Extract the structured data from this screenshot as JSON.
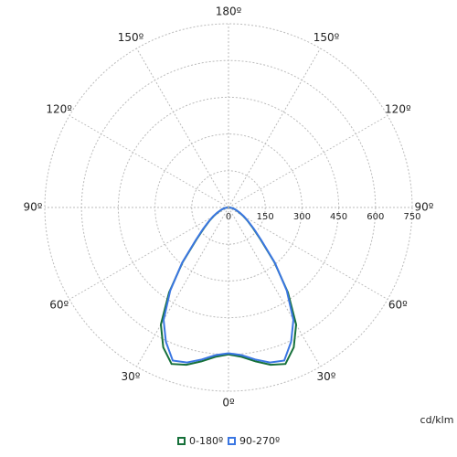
{
  "chart_data": {
    "type": "polar",
    "theta": [
      -90,
      -85,
      -80,
      -75,
      -70,
      -65,
      -60,
      -55,
      -50,
      -45,
      -40,
      -35,
      -30,
      -25,
      -20,
      -15,
      -10,
      -5,
      0,
      5,
      10,
      15,
      20,
      25,
      30,
      35,
      40,
      45,
      50,
      55,
      60,
      65,
      70,
      75,
      80,
      85,
      90
    ],
    "series": [
      {
        "name": "0-180º",
        "color": "#16703a",
        "values": [
          3,
          8,
          15,
          25,
          35,
          50,
          70,
          95,
          130,
          185,
          291,
          423,
          552,
          630,
          680,
          665,
          638,
          612,
          600,
          612,
          638,
          665,
          680,
          630,
          552,
          423,
          291,
          185,
          130,
          95,
          70,
          50,
          35,
          25,
          15,
          8,
          3
        ]
      },
      {
        "name": "90-270º",
        "color": "#3a76e2",
        "values": [
          3,
          8,
          15,
          25,
          36,
          52,
          72,
          98,
          135,
          190,
          295,
          415,
          530,
          605,
          665,
          655,
          630,
          605,
          595,
          605,
          630,
          655,
          665,
          605,
          530,
          415,
          295,
          190,
          135,
          98,
          72,
          52,
          36,
          25,
          15,
          8,
          3
        ]
      }
    ],
    "rlim": [
      0,
      750
    ],
    "rticks": [
      0,
      150,
      300,
      450,
      600,
      750
    ],
    "thetaticks": [
      {
        "value": 0,
        "label": "0º"
      },
      {
        "value": 30,
        "label": "30º"
      },
      {
        "value": 60,
        "label": "60º"
      },
      {
        "value": 90,
        "label": "90º"
      },
      {
        "value": 120,
        "label": "120º"
      },
      {
        "value": 150,
        "label": "150º"
      },
      {
        "value": 180,
        "label": "180º"
      },
      {
        "value": -150,
        "label": "150º"
      },
      {
        "value": -120,
        "label": "120º"
      },
      {
        "value": -90,
        "label": "90º"
      },
      {
        "value": -60,
        "label": "60º"
      },
      {
        "value": -30,
        "label": "30º"
      }
    ],
    "unit_label": "cd/klm"
  }
}
